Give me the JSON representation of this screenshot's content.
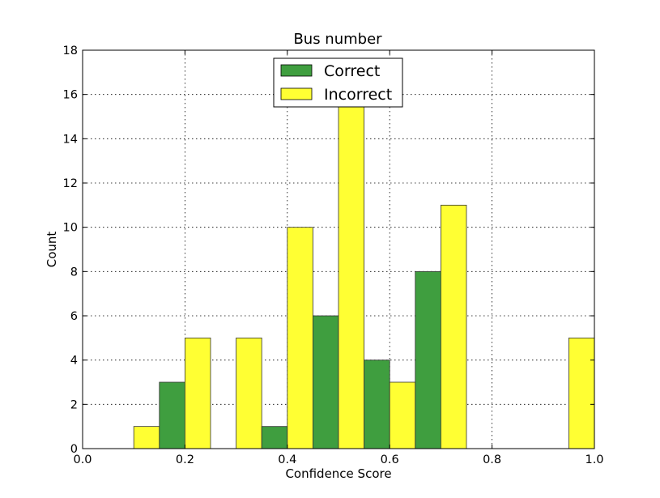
{
  "chart_data": {
    "type": "bar",
    "title": "Bus number",
    "xlabel": "Confidence Score",
    "ylabel": "Count",
    "xlim": [
      0.0,
      1.0
    ],
    "ylim": [
      0,
      18
    ],
    "xticks": [
      "0.0",
      "0.2",
      "0.4",
      "0.6",
      "0.8",
      "1.0"
    ],
    "yticks": [
      "0",
      "2",
      "4",
      "6",
      "8",
      "10",
      "12",
      "14",
      "16",
      "18"
    ],
    "grid": true,
    "legend_position": "top-center",
    "bins": [
      [
        0.05,
        0.15
      ],
      [
        0.15,
        0.25
      ],
      [
        0.25,
        0.35
      ],
      [
        0.35,
        0.45
      ],
      [
        0.45,
        0.55
      ],
      [
        0.55,
        0.65
      ],
      [
        0.65,
        0.75
      ],
      [
        0.75,
        0.85
      ],
      [
        0.85,
        0.95
      ],
      [
        0.95,
        1.0
      ]
    ],
    "series": [
      {
        "name": "Correct",
        "color": "#3f9e3f",
        "values": [
          0,
          3,
          0,
          1,
          6,
          4,
          8,
          0,
          0,
          0
        ]
      },
      {
        "name": "Incorrect",
        "color": "#ffff33",
        "values": [
          1,
          5,
          5,
          10,
          16,
          3,
          11,
          0,
          0,
          5
        ]
      }
    ]
  }
}
